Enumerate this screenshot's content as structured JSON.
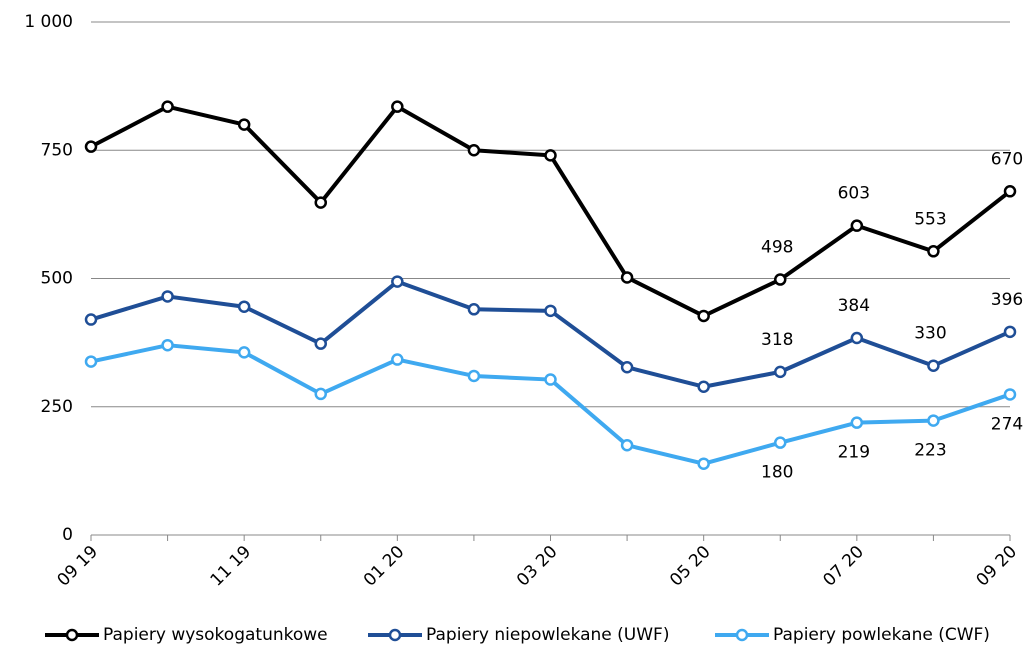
{
  "chart_data": {
    "type": "line",
    "categories": [
      "09 19",
      null,
      "11 19",
      null,
      "01 20",
      null,
      "03 20",
      null,
      "05 20",
      null,
      "07 20",
      null,
      "09 20"
    ],
    "ylim": [
      0,
      1000
    ],
    "yticks": [
      0,
      250,
      500,
      750,
      {
        "value": 1000,
        "label": "1 000"
      }
    ],
    "grid": true,
    "legend": "bottom",
    "series": [
      {
        "name": "Papiery wysokogatunkowe",
        "color": "#000000",
        "label_side": "above",
        "values": [
          757,
          835,
          800,
          648,
          835,
          750,
          740,
          502,
          427,
          498,
          603,
          553,
          670
        ],
        "value_labels": [
          null,
          null,
          null,
          null,
          null,
          null,
          null,
          null,
          null,
          "498",
          "603",
          "553",
          "670"
        ]
      },
      {
        "name": "Papiery niepowlekane (UWF)",
        "color": "#1f4e96",
        "label_side": "above",
        "values": [
          420,
          465,
          445,
          373,
          494,
          440,
          437,
          327,
          289,
          318,
          384,
          330,
          396
        ],
        "value_labels": [
          null,
          null,
          null,
          null,
          null,
          null,
          null,
          null,
          null,
          "318",
          "384",
          "330",
          "396"
        ]
      },
      {
        "name": "Papiery powlekane (CWF)",
        "color": "#3fa9f0",
        "label_side": "below",
        "values": [
          338,
          370,
          356,
          275,
          342,
          310,
          303,
          175,
          139,
          180,
          219,
          223,
          274
        ],
        "value_labels": [
          null,
          null,
          null,
          null,
          null,
          null,
          null,
          null,
          null,
          "180",
          "219",
          "223",
          "274"
        ]
      }
    ]
  }
}
